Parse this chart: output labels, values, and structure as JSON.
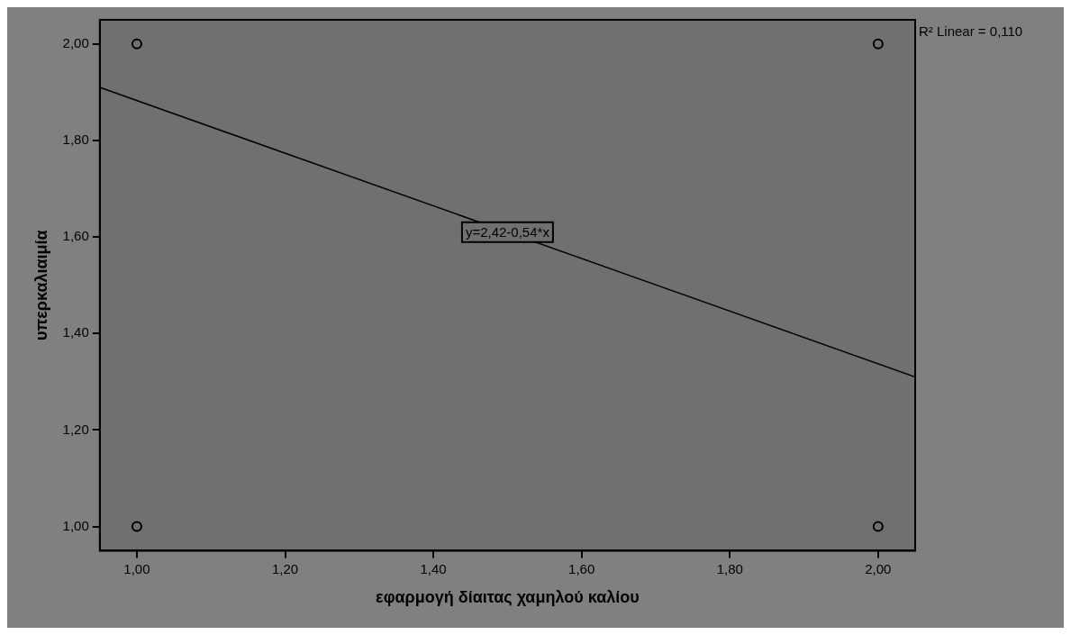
{
  "chart_data": {
    "type": "scatter",
    "xlabel": "εφαρμογή δίαιτας χαμηλού καλίου",
    "ylabel": "υπερκαλιαιμία",
    "xlim": [
      0.95,
      2.05
    ],
    "ylim": [
      0.95,
      2.05
    ],
    "xticks": [
      {
        "value": 1,
        "label": "1,00"
      },
      {
        "value": 1.2,
        "label": "1,20"
      },
      {
        "value": 1.4,
        "label": "1,40"
      },
      {
        "value": 1.6,
        "label": "1,60"
      },
      {
        "value": 1.8,
        "label": "1,80"
      },
      {
        "value": 2,
        "label": "2,00"
      }
    ],
    "yticks": [
      {
        "value": 1,
        "label": "1,00"
      },
      {
        "value": 1.2,
        "label": "1,20"
      },
      {
        "value": 1.4,
        "label": "1,40"
      },
      {
        "value": 1.6,
        "label": "1,60"
      },
      {
        "value": 1.8,
        "label": "1,80"
      },
      {
        "value": 2,
        "label": "2,00"
      }
    ],
    "series": [
      {
        "marker": "circle",
        "color": "#000000",
        "x": [
          1,
          1,
          2,
          2
        ],
        "values": [
          2,
          1,
          2,
          1
        ]
      },
      {
        "type": "line",
        "color": "#000000",
        "x": [
          0.95,
          2.05
        ],
        "values": [
          1.91,
          1.31
        ]
      }
    ],
    "annotations": [
      {
        "text": "y=2,42-0,54*x",
        "x": 1.5,
        "y": 1.61
      },
      "R² Linear = 0,110"
    ]
  }
}
